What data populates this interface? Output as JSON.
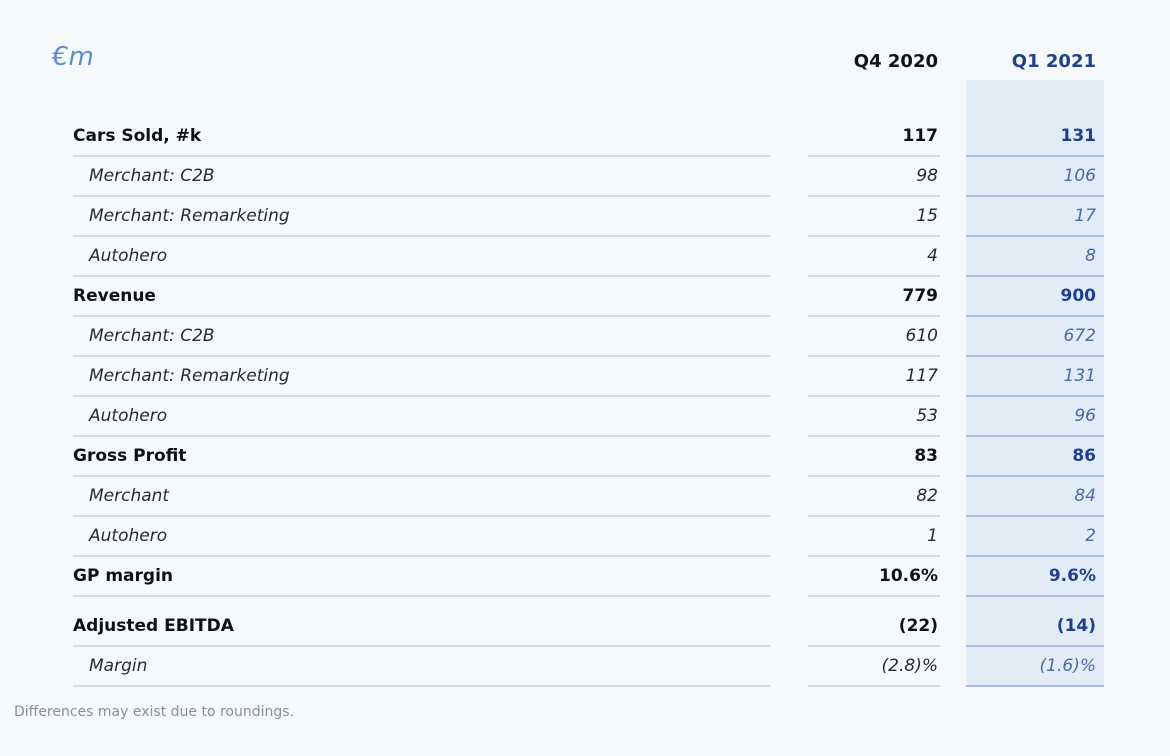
{
  "unit_label": "€m",
  "columns": {
    "q4": "Q4 2020",
    "q1": "Q1 2021"
  },
  "rows": [
    {
      "label": "Cars Sold, #k",
      "q4": "117",
      "q1": "131",
      "type": "main"
    },
    {
      "label": "Merchant: C2B",
      "q4": "98",
      "q1": "106",
      "type": "sub"
    },
    {
      "label": "Merchant: Remarketing",
      "q4": "15",
      "q1": "17",
      "type": "sub"
    },
    {
      "label": "Autohero",
      "q4": "4",
      "q1": "8",
      "type": "sub"
    },
    {
      "label": "Revenue",
      "q4": "779",
      "q1": "900",
      "type": "main"
    },
    {
      "label": "Merchant: C2B",
      "q4": "610",
      "q1": "672",
      "type": "sub"
    },
    {
      "label": "Merchant: Remarketing",
      "q4": "117",
      "q1": "131",
      "type": "sub"
    },
    {
      "label": "Autohero",
      "q4": "53",
      "q1": "96",
      "type": "sub"
    },
    {
      "label": "Gross Profit",
      "q4": "83",
      "q1": "86",
      "type": "main"
    },
    {
      "label": "Merchant",
      "q4": "82",
      "q1": "84",
      "type": "sub"
    },
    {
      "label": "Autohero",
      "q4": "1",
      "q1": "2",
      "type": "sub"
    },
    {
      "label": "GP margin",
      "q4": "10.6%",
      "q1": "9.6%",
      "type": "main"
    },
    {
      "label": "Adjusted EBITDA",
      "q4": "(22)",
      "q1": "(14)",
      "type": "main"
    },
    {
      "label": "Margin",
      "q4": "(2.8)%",
      "q1": "(1.6)%",
      "type": "sub"
    }
  ],
  "footnote": "Differences may exist due to roundings.",
  "colors": {
    "accent": "#1f3f8f",
    "unit": "#5a8fd0",
    "highlight": "#e1ecf7"
  }
}
